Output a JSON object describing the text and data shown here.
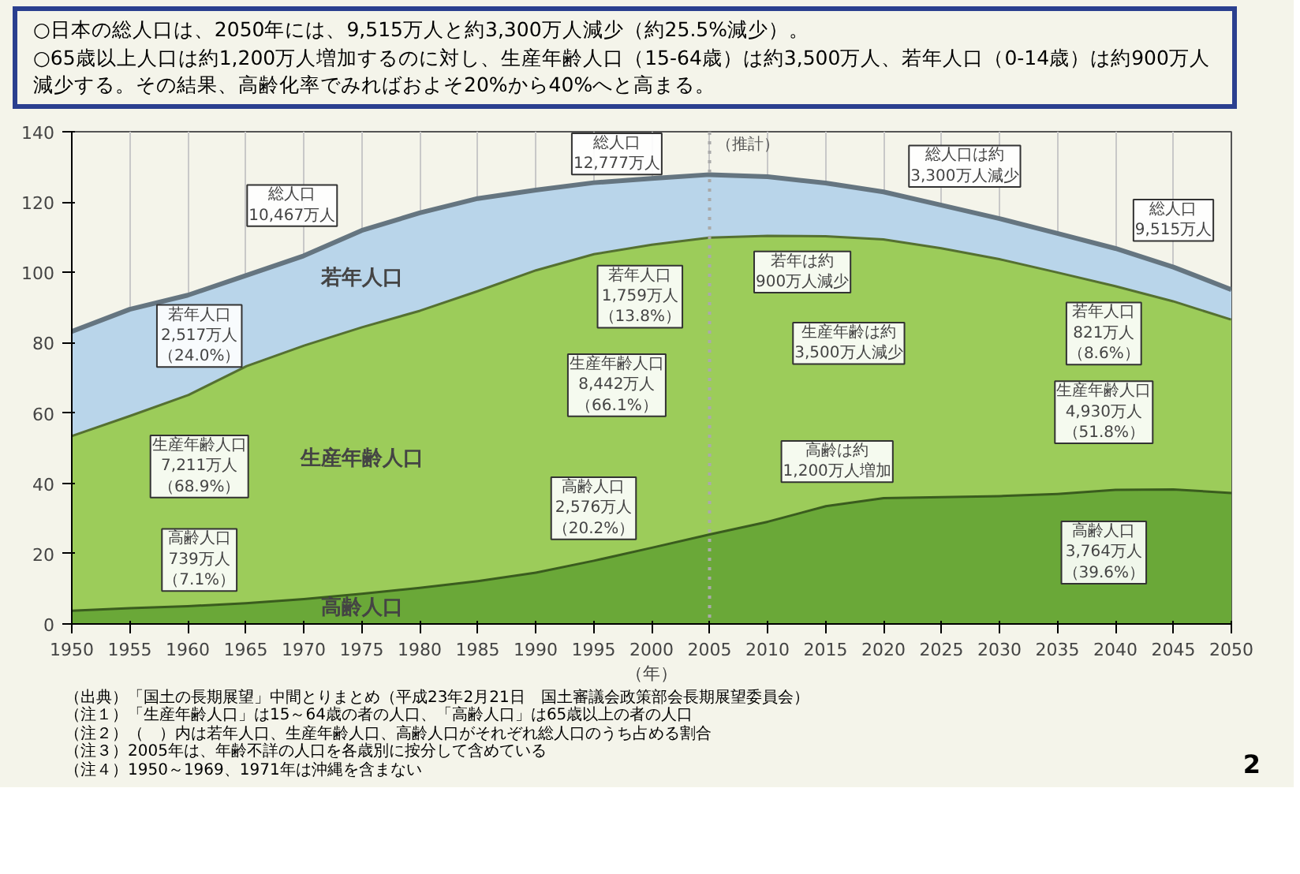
{
  "chart_data": {
    "type": "area",
    "stacked": true,
    "title": "○日本の総人口は、2050年には、9,515万人と約3,300万人減少（約25.5%減少）。",
    "subtitle": "○65歳以上人口は約1,200万人増加するのに対し、生産年齢人口（15-64歳）は約3,500万人、若年人口（0-14歳）は約900万人減少する。その結果、高齢化率でみればおよそ20%から40%へと高まる。",
    "xlabel": "（年）",
    "xlim": [
      1950,
      2050
    ],
    "ylim": [
      0,
      140
    ],
    "xticks": [
      1950,
      1955,
      1960,
      1965,
      1970,
      1975,
      1980,
      1985,
      1990,
      1995,
      2000,
      2005,
      2010,
      2015,
      2020,
      2025,
      2030,
      2035,
      2040,
      2045,
      2050
    ],
    "yticks": [
      0,
      20,
      40,
      60,
      80,
      100,
      120,
      140
    ],
    "grid": "x",
    "x": [
      1950,
      1955,
      1960,
      1965,
      1970,
      1975,
      1980,
      1985,
      1990,
      1995,
      2000,
      2005,
      2010,
      2015,
      2020,
      2025,
      2030,
      2035,
      2040,
      2045,
      2050
    ],
    "series": [
      {
        "name": "高齢人口",
        "color": "#6aa838",
        "values": [
          4.1,
          4.8,
          5.4,
          6.2,
          7.4,
          8.9,
          10.6,
          12.5,
          14.9,
          18.3,
          22.0,
          25.8,
          29.4,
          33.8,
          36.1,
          36.4,
          36.7,
          37.3,
          38.5,
          38.6,
          37.6
        ]
      },
      {
        "name": "生産年齢人口",
        "color": "#9ccc5a",
        "values": [
          49.7,
          54.7,
          60.0,
          67.4,
          72.1,
          75.8,
          78.8,
          82.5,
          86.0,
          87.2,
          86.2,
          84.4,
          81.3,
          76.8,
          73.6,
          70.8,
          67.4,
          63.0,
          57.9,
          53.5,
          49.3
        ]
      },
      {
        "name": "若年人口",
        "color": "#b9d5ea",
        "values": [
          29.4,
          30.0,
          28.1,
          25.5,
          25.2,
          27.2,
          27.5,
          26.0,
          22.5,
          20.0,
          18.5,
          17.6,
          16.5,
          14.8,
          13.2,
          11.9,
          11.2,
          10.8,
          10.4,
          9.4,
          8.2
        ]
      }
    ],
    "ref_lines": [
      {
        "axis": "x",
        "value": 2005,
        "label": "（推計）",
        "color": "#aaaaaa",
        "line_style": "dotted"
      }
    ],
    "annotations": [
      "総人口10,467万人",
      "若年人口2,517万人（24.0%）",
      "生産年齢人口7,211万人（68.9%）",
      "高齢人口739万人（7.1%）",
      "総人口12,777万人",
      "若年人口1,759万人（13.8%）",
      "生産年齢人口8,442万人（66.1%）",
      "高齢人口2,576万人（20.2%）",
      "総人口は約3,300万人減少",
      "若年は約900万人減少",
      "生産年齢は約3,500万人減少",
      "高齢は約1,200万人増加",
      "総人口9,515万人",
      "若年人口821万人（8.6%）",
      "生産年齢人口4,930万人（51.8%）",
      "高齢人口3,764万人（39.6%）",
      "（出典）「国土の長期展望」中間とりまとめ（平成23年2月21日　国土審議会政策部会長期展望委員会）",
      "（注１）「生産年齢人口」は15～64歳の者の人口、「高齢人口」は65歳以上の者の人口",
      "（注２）（　）内は若年人口、生産年齢人口、高齢人口がそれぞれ総人口のうち占める割合",
      "（注３）2005年は、年齢不詳の人口を各歳別に按分して含めている",
      "（注４）1950～1969、1971年は沖縄を含まない",
      "2"
    ]
  }
}
